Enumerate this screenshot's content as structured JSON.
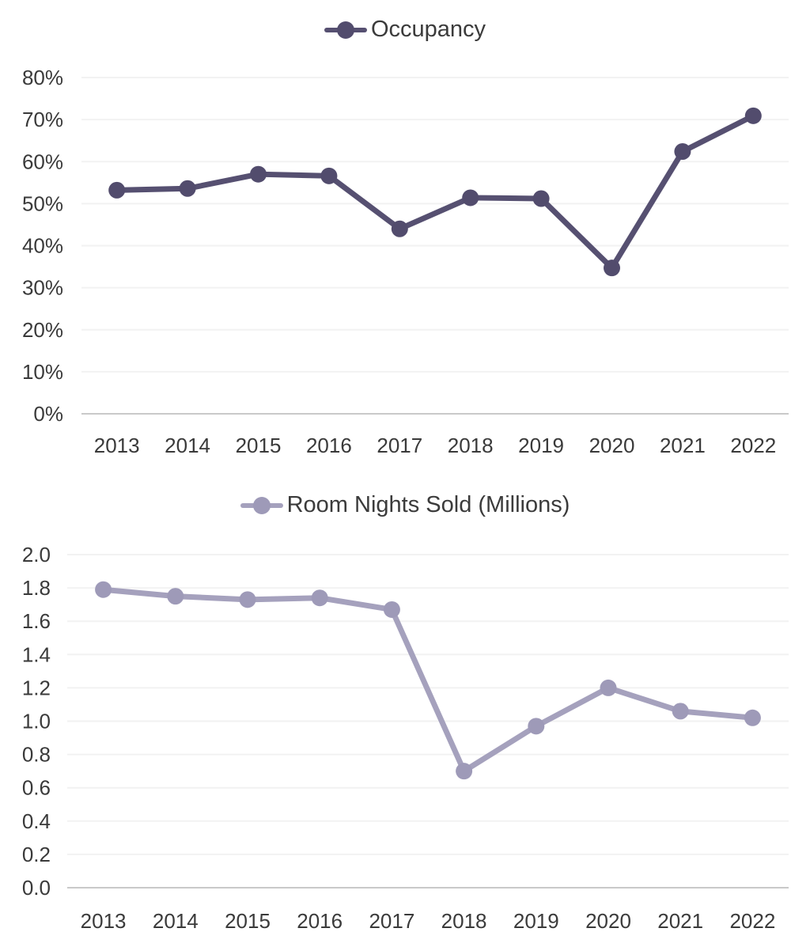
{
  "page": {
    "background": "#ffffff",
    "text_color": "#3a3a3a"
  },
  "chart_data": [
    {
      "type": "line",
      "title": "Occupancy",
      "legend": "Occupancy",
      "legend_position": "top-center",
      "categories": [
        "2013",
        "2014",
        "2015",
        "2016",
        "2017",
        "2018",
        "2019",
        "2020",
        "2021",
        "2022"
      ],
      "values": [
        53.2,
        53.6,
        57.0,
        56.6,
        44.0,
        51.4,
        51.2,
        34.7,
        62.4,
        70.9
      ],
      "values_unit": "percent",
      "xlabel": "",
      "ylabel": "",
      "ylim": [
        0,
        80
      ],
      "grid": true,
      "marker": "circle",
      "line_color": "#565071",
      "marker_color": "#524c6d",
      "y_ticks": [
        {
          "value": 0,
          "label": "0%"
        },
        {
          "value": 10,
          "label": "10%"
        },
        {
          "value": 20,
          "label": "20%"
        },
        {
          "value": 30,
          "label": "30%"
        },
        {
          "value": 40,
          "label": "40%"
        },
        {
          "value": 50,
          "label": "50%"
        },
        {
          "value": 60,
          "label": "60%"
        },
        {
          "value": 70,
          "label": "70%"
        },
        {
          "value": 80,
          "label": "80%"
        }
      ]
    },
    {
      "type": "line",
      "title": "Room Nights Sold (Millions)",
      "legend": "Room Nights Sold (Millions)",
      "legend_position": "top-center",
      "categories": [
        "2013",
        "2014",
        "2015",
        "2016",
        "2017",
        "2018",
        "2019",
        "2020",
        "2021",
        "2022"
      ],
      "values": [
        1.79,
        1.75,
        1.73,
        1.74,
        1.67,
        0.7,
        0.97,
        1.2,
        1.06,
        1.02
      ],
      "values_unit": "millions",
      "xlabel": "",
      "ylabel": "",
      "ylim": [
        0,
        2.0
      ],
      "grid": true,
      "marker": "circle",
      "line_color": "#a5a1bd",
      "marker_color": "#9e9ab8",
      "y_ticks": [
        {
          "value": 0.0,
          "label": "0.0"
        },
        {
          "value": 0.2,
          "label": "0.2"
        },
        {
          "value": 0.4,
          "label": "0.4"
        },
        {
          "value": 0.6,
          "label": "0.6"
        },
        {
          "value": 0.8,
          "label": "0.8"
        },
        {
          "value": 1.0,
          "label": "1.0"
        },
        {
          "value": 1.2,
          "label": "1.2"
        },
        {
          "value": 1.4,
          "label": "1.4"
        },
        {
          "value": 1.6,
          "label": "1.6"
        },
        {
          "value": 1.8,
          "label": "1.8"
        },
        {
          "value": 2.0,
          "label": "2.0"
        }
      ]
    }
  ]
}
